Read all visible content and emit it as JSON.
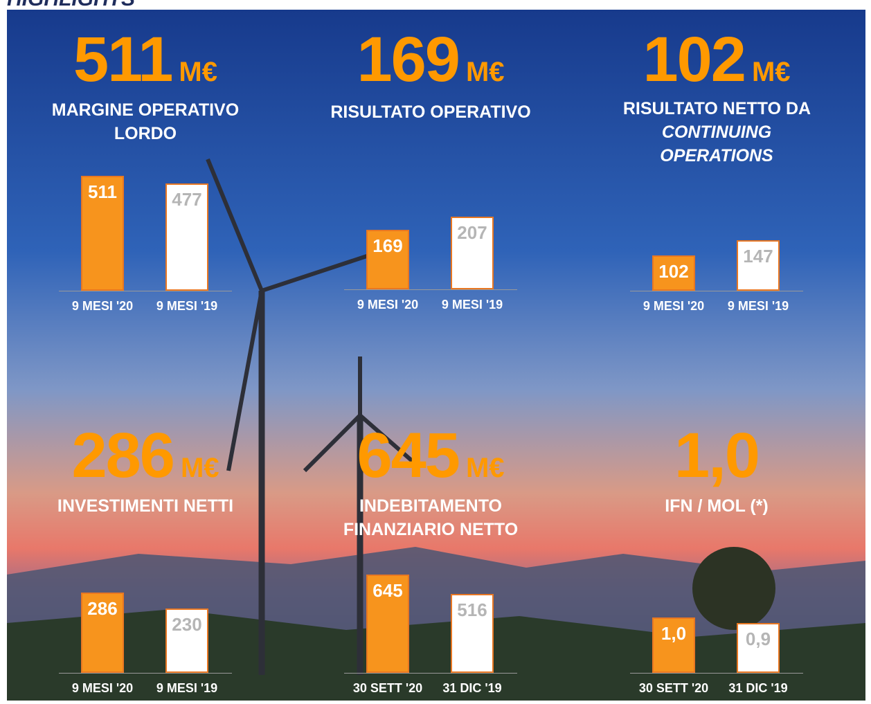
{
  "title": "HIGHLIGHTS",
  "chart_data": [
    {
      "type": "bar",
      "headline": "511",
      "unit": "M€",
      "label": "MARGINE OPERATIVO LORDO",
      "categories": [
        "9 MESI '20",
        "9 MESI '19"
      ],
      "values": [
        511,
        477
      ],
      "colors": [
        "#f7941d",
        "#ffffff"
      ]
    },
    {
      "type": "bar",
      "headline": "169",
      "unit": "M€",
      "label": "RISULTATO OPERATIVO",
      "categories": [
        "9 MESI '20",
        "9 MESI '19"
      ],
      "values": [
        169,
        207
      ],
      "colors": [
        "#f7941d",
        "#ffffff"
      ]
    },
    {
      "type": "bar",
      "headline": "102",
      "unit": "M€",
      "label": "RISULTATO NETTO DA",
      "label_italic": "CONTINUING OPERATIONS",
      "categories": [
        "9 MESI '20",
        "9 MESI '19"
      ],
      "values": [
        102,
        147
      ],
      "colors": [
        "#f7941d",
        "#ffffff"
      ]
    },
    {
      "type": "bar",
      "headline": "286",
      "unit": "M€",
      "label": "INVESTIMENTI NETTI",
      "categories": [
        "9 MESI '20",
        "9 MESI '19"
      ],
      "values": [
        286,
        230
      ],
      "colors": [
        "#f7941d",
        "#ffffff"
      ]
    },
    {
      "type": "bar",
      "headline": "645",
      "unit": "M€",
      "label": "INDEBITAMENTO FINANZIARIO NETTO",
      "categories": [
        "30 SETT '20",
        "31 DIC '19"
      ],
      "values": [
        645,
        516
      ],
      "colors": [
        "#f7941d",
        "#ffffff"
      ]
    },
    {
      "type": "bar",
      "headline": "1,0",
      "label": "IFN / MOL (*)",
      "categories": [
        "30 SETT '20",
        "31 DIC '19"
      ],
      "values": [
        1.0,
        0.9
      ],
      "value_labels": [
        "1,0",
        "0,9"
      ],
      "colors": [
        "#f7941d",
        "#ffffff"
      ]
    }
  ]
}
